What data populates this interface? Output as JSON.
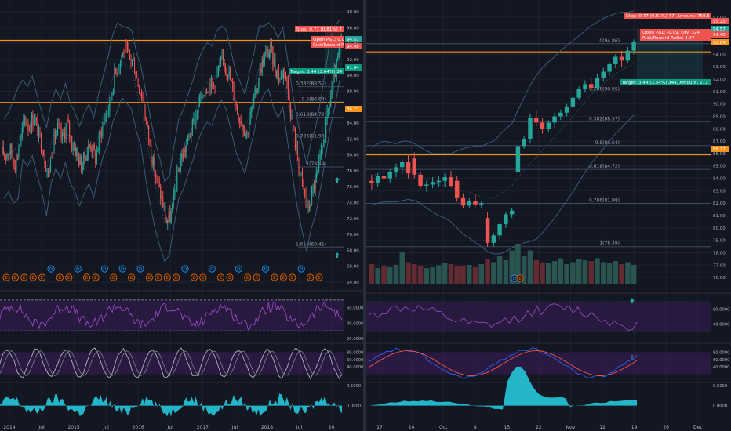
{
  "theme": {
    "bg": "#131722",
    "grid": "#1e2230",
    "axis_text": "#b2b5be",
    "up": "#26a69a",
    "down": "#ef5350",
    "bb": "#3a5c74",
    "fib_line": "#3d4a60",
    "orange": "#f7931a",
    "rsi": "#7b1fa2",
    "fill": "#3a1d57",
    "stoch_k": "#2962ff",
    "stoch_d": "#ef5350",
    "histo": "#26c6da"
  },
  "charts": [
    {
      "id": "left",
      "chart_data": {
        "type": "candlestick",
        "title": "",
        "xlabel": "",
        "ylabel": "",
        "ylim": [
          64,
          98
        ],
        "x_ticks": [
          "2014",
          "Jul",
          "2015",
          "Jul",
          "2016",
          "Jul",
          "2017",
          "Jul",
          "2018",
          "Jul",
          "20"
        ],
        "y_ticks": [
          "98.00",
          "96.00",
          "94.00",
          "92.00",
          "90.00",
          "88.00",
          "86.00",
          "84.00",
          "82.00",
          "80.00",
          "78.00",
          "76.00",
          "74.00",
          "72.00",
          "70.00",
          "68.00",
          "66.00",
          "64.00"
        ],
        "candle_closes": [
          80.2,
          80.6,
          78.9,
          81.5,
          84.4,
          83.6,
          84.9,
          82.5,
          80.4,
          77.4,
          81.5,
          83.3,
          82.0,
          84.0,
          81.5,
          80.4,
          78.6,
          80.2,
          81.4,
          79.6,
          82.6,
          84.9,
          86.2,
          90.1,
          91.6,
          93.2,
          92.5,
          91.7,
          89.0,
          87.1,
          83.0,
          79.6,
          76.6,
          74.5,
          71.6,
          72.4,
          76.2,
          79.5,
          80.8,
          82.7,
          84.4,
          86.7,
          88.2,
          89.1,
          88.7,
          90.6,
          91.9,
          90.7,
          88.2,
          85.5,
          84.1,
          82.6,
          85.6,
          88.1,
          91.2,
          92.6,
          93.2,
          91.0,
          89.7,
          91.0,
          86.7,
          82.6,
          78.6,
          75.6,
          72.9,
          75.7,
          77.6,
          80.9,
          84.6,
          88.4,
          91.1,
          94.4
        ],
        "bollinger": {
          "upper": [
            84.5,
            85.4,
            86.9,
            88.5,
            89.4,
            88.6,
            89.9,
            87.5,
            85.4,
            83.4,
            86.5,
            88.3,
            87.0,
            89.0,
            86.5,
            85.4,
            83.6,
            85.2,
            86.4,
            84.6,
            87.6,
            89.9,
            92.2,
            95.1,
            96.6,
            96.2,
            96.0,
            95.7,
            93.0,
            91.1,
            88.0,
            84.6,
            81.6,
            79.5,
            76.6,
            77.4,
            81.2,
            84.5,
            85.8,
            87.7,
            89.4,
            91.7,
            93.2,
            94.1,
            93.7,
            95.6,
            96.2,
            95.7,
            93.2,
            90.5,
            89.1,
            87.6,
            90.6,
            93.1,
            96.2,
            96.2,
            96.6,
            96.0,
            94.7,
            96.0,
            92.0,
            88.0,
            84.6,
            81.6,
            78.9,
            81.7,
            83.6,
            86.9,
            90.6,
            94.4,
            96.1,
            97.0
          ],
          "lower": [
            74.5,
            75.4,
            73.9,
            74.5,
            79.4,
            78.6,
            79.9,
            77.5,
            75.4,
            72.4,
            76.5,
            78.3,
            77.0,
            79.0,
            76.5,
            75.4,
            73.6,
            75.2,
            76.4,
            74.6,
            77.6,
            79.9,
            81.2,
            84.1,
            85.6,
            87.2,
            86.5,
            85.7,
            83.0,
            81.1,
            77.0,
            73.6,
            70.6,
            68.5,
            66.6,
            67.4,
            71.2,
            74.5,
            75.8,
            77.7,
            79.4,
            81.7,
            83.2,
            84.1,
            83.7,
            85.6,
            86.9,
            85.7,
            83.2,
            80.5,
            79.1,
            77.6,
            80.6,
            83.1,
            86.2,
            87.6,
            88.2,
            86.0,
            84.7,
            86.0,
            81.7,
            77.6,
            73.6,
            70.6,
            67.9,
            70.7,
            72.6,
            75.9,
            79.6,
            83.4,
            86.1,
            89.4
          ]
        },
        "fib_levels": [
          {
            "label": "0.382(88.57)",
            "value": 88.57
          },
          {
            "label": "0.5(86.64)",
            "value": 86.64
          },
          {
            "label": "0.618(84.72)",
            "value": 84.72
          },
          {
            "label": "0.786(81.98)",
            "value": 81.98
          },
          {
            "label": "1(78.49)",
            "value": 78.49
          },
          {
            "label": "1.618(68.41)",
            "value": 68.41
          }
        ],
        "horizontal_lines": [
          94.4,
          86.6
        ],
        "price_labels": [
          "94.57",
          "94.48",
          "91.84",
          "86.77"
        ],
        "position_boxes": {
          "stop": "Stop: 0.77 (0.81%) 7",
          "open_pl": "Open P&L: 0.0",
          "risk_reward": "Risk/Reward R",
          "target": "Target: 3.44 (3.64%) 34"
        },
        "event_row": [
          "E",
          "E",
          "E",
          "E",
          "E",
          "D",
          "E",
          "E",
          "D",
          "E",
          "E",
          "D",
          "E",
          "D",
          "E",
          "D",
          "E",
          "E",
          "E",
          "E",
          "D",
          "E",
          "E",
          "D",
          "E",
          "E",
          "D",
          "E",
          "E",
          "D",
          "E",
          "E",
          "E",
          "D",
          "E",
          "E"
        ],
        "rsi": {
          "ylim": [
            20,
            80
          ],
          "ticks": [
            "60.0000",
            "40.0000",
            "20.0000"
          ]
        },
        "stoch": {
          "ylim": [
            0,
            100
          ],
          "ticks": [
            "80.0000",
            "60.0000",
            "40.0000"
          ]
        },
        "histogram": {
          "ticks": [
            "0.5000",
            "0.0000"
          ]
        }
      }
    },
    {
      "id": "right",
      "chart_data": {
        "type": "candlestick",
        "title": "",
        "xlabel": "",
        "ylabel": "",
        "ylim": [
          75.5,
          97.5
        ],
        "x_ticks": [
          "17",
          "24",
          "Oct",
          "8",
          "15",
          "22",
          "Nov",
          "12",
          "19",
          "26",
          "Dec"
        ],
        "y_ticks": [
          "97.00",
          "96.00",
          "95.00",
          "94.00",
          "93.00",
          "92.00",
          "91.00",
          "90.00",
          "89.00",
          "88.00",
          "87.00",
          "86.00",
          "85.00",
          "84.00",
          "83.00",
          "82.00",
          "81.00",
          "80.00",
          "79.00",
          "78.00",
          "77.00",
          "76.00"
        ],
        "candles": [
          {
            "o": 83.8,
            "h": 84.3,
            "l": 83.1,
            "c": 83.6
          },
          {
            "o": 83.6,
            "h": 84.4,
            "l": 83.3,
            "c": 84.2
          },
          {
            "o": 84.2,
            "h": 84.6,
            "l": 83.7,
            "c": 84.0
          },
          {
            "o": 84.0,
            "h": 84.7,
            "l": 83.6,
            "c": 84.5
          },
          {
            "o": 84.5,
            "h": 85.2,
            "l": 84.1,
            "c": 84.9
          },
          {
            "o": 84.9,
            "h": 85.6,
            "l": 84.3,
            "c": 85.3
          },
          {
            "o": 85.3,
            "h": 86.0,
            "l": 84.0,
            "c": 84.4
          },
          {
            "o": 85.6,
            "h": 86.1,
            "l": 84.0,
            "c": 84.3
          },
          {
            "o": 84.3,
            "h": 84.5,
            "l": 83.2,
            "c": 83.4
          },
          {
            "o": 83.4,
            "h": 83.8,
            "l": 82.9,
            "c": 83.5
          },
          {
            "o": 83.5,
            "h": 84.1,
            "l": 83.2,
            "c": 83.7
          },
          {
            "o": 83.7,
            "h": 84.2,
            "l": 83.3,
            "c": 83.8
          },
          {
            "o": 83.8,
            "h": 84.4,
            "l": 83.3,
            "c": 84.1
          },
          {
            "o": 84.1,
            "h": 84.6,
            "l": 83.3,
            "c": 83.4
          },
          {
            "o": 83.8,
            "h": 84.2,
            "l": 82.1,
            "c": 82.4
          },
          {
            "o": 82.4,
            "h": 82.8,
            "l": 81.6,
            "c": 81.8
          },
          {
            "o": 81.8,
            "h": 82.4,
            "l": 81.6,
            "c": 82.2
          },
          {
            "o": 82.2,
            "h": 82.7,
            "l": 81.7,
            "c": 81.9
          },
          {
            "o": 81.9,
            "h": 82.2,
            "l": 81.6,
            "c": 82.0
          },
          {
            "o": 80.8,
            "h": 81.3,
            "l": 78.5,
            "c": 78.8
          },
          {
            "o": 78.8,
            "h": 79.6,
            "l": 78.5,
            "c": 79.4
          },
          {
            "o": 79.4,
            "h": 80.4,
            "l": 79.1,
            "c": 80.3
          },
          {
            "o": 80.3,
            "h": 81.3,
            "l": 80.0,
            "c": 81.1
          },
          {
            "o": 81.1,
            "h": 81.6,
            "l": 80.8,
            "c": 81.4
          },
          {
            "o": 84.5,
            "h": 86.8,
            "l": 84.3,
            "c": 86.6
          },
          {
            "o": 86.6,
            "h": 87.4,
            "l": 86.4,
            "c": 87.2
          },
          {
            "o": 87.2,
            "h": 89.2,
            "l": 86.8,
            "c": 88.9
          },
          {
            "o": 88.9,
            "h": 89.5,
            "l": 88.2,
            "c": 88.5
          },
          {
            "o": 88.5,
            "h": 88.9,
            "l": 87.6,
            "c": 88.0
          },
          {
            "o": 88.0,
            "h": 88.7,
            "l": 87.7,
            "c": 88.5
          },
          {
            "o": 88.5,
            "h": 89.3,
            "l": 88.1,
            "c": 89.0
          },
          {
            "o": 89.0,
            "h": 89.5,
            "l": 88.7,
            "c": 89.3
          },
          {
            "o": 89.3,
            "h": 90.0,
            "l": 89.0,
            "c": 89.8
          },
          {
            "o": 89.8,
            "h": 90.7,
            "l": 89.6,
            "c": 90.5
          },
          {
            "o": 90.5,
            "h": 91.4,
            "l": 90.3,
            "c": 91.2
          },
          {
            "o": 91.2,
            "h": 91.9,
            "l": 90.9,
            "c": 91.6
          },
          {
            "o": 91.6,
            "h": 92.1,
            "l": 91.0,
            "c": 91.3
          },
          {
            "o": 91.3,
            "h": 92.4,
            "l": 91.1,
            "c": 92.1
          },
          {
            "o": 92.1,
            "h": 92.9,
            "l": 91.8,
            "c": 92.6
          },
          {
            "o": 92.6,
            "h": 93.4,
            "l": 92.3,
            "c": 93.2
          },
          {
            "o": 93.2,
            "h": 94.0,
            "l": 92.9,
            "c": 93.8
          },
          {
            "o": 93.8,
            "h": 94.3,
            "l": 93.0,
            "c": 93.5
          },
          {
            "o": 93.5,
            "h": 94.6,
            "l": 93.3,
            "c": 94.3
          },
          {
            "o": 94.3,
            "h": 95.2,
            "l": 94.0,
            "c": 95.0
          }
        ],
        "volumes": [
          0.5,
          0.4,
          0.45,
          0.42,
          0.48,
          0.8,
          0.55,
          0.5,
          0.45,
          0.4,
          0.42,
          0.47,
          0.52,
          0.5,
          0.46,
          0.44,
          0.48,
          0.42,
          0.5,
          0.62,
          0.55,
          0.7,
          0.6,
          0.85,
          1.0,
          0.7,
          0.85,
          0.6,
          0.55,
          0.52,
          0.58,
          0.65,
          0.5,
          0.55,
          0.62,
          0.6,
          0.58,
          0.65,
          0.55,
          0.52,
          0.58,
          0.5,
          0.55,
          0.48
        ],
        "bollinger": {
          "upper": [
            86.5,
            86.8,
            87.0,
            86.9,
            86.8,
            87.0,
            87.0,
            86.8,
            86.5,
            86.2,
            86.0,
            86.0,
            86.0,
            86.0,
            86.2,
            86.4,
            86.5,
            86.6,
            86.6,
            86.8,
            87.0,
            87.5,
            88.0,
            88.4,
            89.5,
            90.5,
            91.5,
            92.3,
            92.9,
            93.4,
            93.8,
            94.3,
            94.7,
            95.1,
            95.5,
            95.9,
            96.3,
            96.6,
            96.9,
            97.1,
            97.3,
            97.4,
            97.4,
            97.5
          ],
          "lower": [
            81.8,
            82.0,
            82.1,
            82.1,
            82.1,
            82.2,
            82.3,
            82.2,
            82.0,
            81.6,
            81.3,
            81.0,
            80.8,
            80.5,
            80.0,
            79.5,
            79.2,
            78.8,
            78.5,
            78.1,
            77.9,
            77.9,
            78.1,
            78.4,
            78.6,
            78.8,
            78.9,
            79.1,
            79.6,
            80.2,
            80.8,
            81.5,
            82.2,
            82.9,
            83.7,
            84.5,
            85.2,
            85.8,
            86.4,
            87.0,
            87.6,
            88.1,
            88.6,
            89.1
          ]
        },
        "fib_levels": [
          {
            "label": "0(94.86)",
            "value": 94.86
          },
          {
            "label": "0.236(90.95)",
            "value": 90.95
          },
          {
            "label": "0.382(88.57)",
            "value": 88.57
          },
          {
            "label": "0.5(86.64)",
            "value": 86.64
          },
          {
            "label": "0.618(84.72)",
            "value": 84.72
          },
          {
            "label": "0.786(81.98)",
            "value": 81.98
          },
          {
            "label": "1(78.49)",
            "value": 78.49
          }
        ],
        "horizontal_lines": [
          94.2,
          85.9
        ],
        "price_labels": [
          "95.25",
          "94.57",
          "94.48",
          "93.84",
          "86.77"
        ],
        "position_boxes": {
          "stop": "Stop: 0.77 (0.81%) 77, Amount: 750.5",
          "open_pl": "Open P&L: -0.09, Qty: 324",
          "risk_reward": "Risk/Reward Ratio: 4.47",
          "target": "Target: 3.44 (3.64%) 344, Amount: 211"
        },
        "event_row": [
          "D",
          "E"
        ],
        "rsi": {
          "ylim": [
            20,
            80
          ],
          "ticks": [
            "60.0000",
            "40.0000"
          ]
        },
        "stoch": {
          "ylim": [
            0,
            100
          ],
          "ticks": [
            "80.0000",
            "60.0000",
            "40.0000"
          ]
        },
        "histogram": {
          "ticks": [
            "0.5000",
            "0.0000"
          ]
        }
      }
    }
  ]
}
